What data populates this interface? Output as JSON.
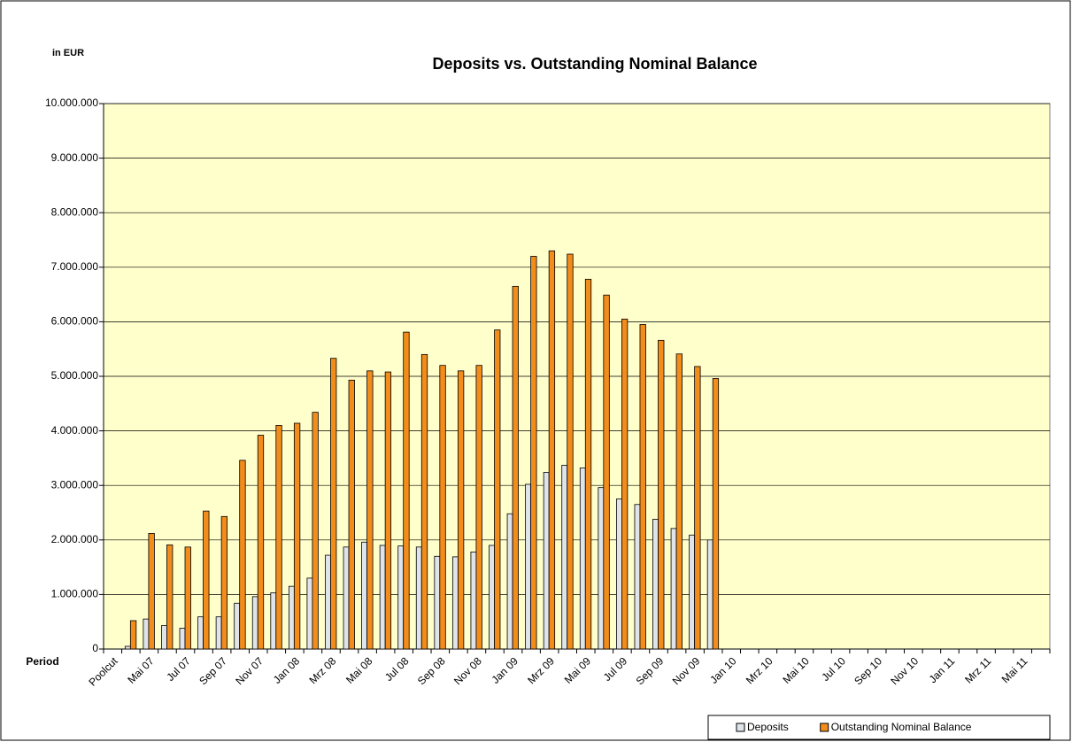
{
  "chart_data": {
    "type": "bar",
    "title": "Deposits vs. Outstanding Nominal Balance",
    "y_label": "in EUR",
    "x_label": "Period",
    "categories": [
      "Poolcut",
      null,
      "Mai 07",
      null,
      "Jul 07",
      null,
      "Sep 07",
      null,
      "Nov 07",
      null,
      "Jan 08",
      null,
      "Mrz 08",
      null,
      "Mai 08",
      null,
      "Jul 08",
      null,
      "Sep 08",
      null,
      "Nov 08",
      null,
      "Jan 09",
      null,
      "Mrz 09",
      null,
      "Mai 09",
      null,
      "Jul 09",
      null,
      "Sep 09",
      null,
      "Nov 09",
      null,
      "Jan 10",
      null,
      "Mrz 10",
      null,
      "Mai 10",
      null,
      "Jul 10",
      null,
      "Sep 10",
      null,
      "Nov 10",
      null,
      "Jan 11",
      null,
      "Mrz 11",
      null,
      "Mai 11",
      null
    ],
    "series": [
      {
        "name": "Deposits",
        "color": "#dfe3ea",
        "values": [
          null,
          50000,
          550000,
          430000,
          380000,
          590000,
          590000,
          840000,
          960000,
          1030000,
          1150000,
          1300000,
          1720000,
          1870000,
          1960000,
          1900000,
          1890000,
          1870000,
          1700000,
          1690000,
          1780000,
          1900000,
          2480000,
          3020000,
          3240000,
          3370000,
          3320000,
          2960000,
          2750000,
          2650000,
          2380000,
          2210000,
          2090000,
          2000000,
          null,
          null,
          null,
          null,
          null,
          null,
          null,
          null,
          null,
          null,
          null,
          null,
          null,
          null,
          null,
          null,
          null,
          null
        ]
      },
      {
        "name": "Outstanding Nominal Balance",
        "color": "#f28c1a",
        "values": [
          null,
          520000,
          2120000,
          1910000,
          1870000,
          2530000,
          2430000,
          3460000,
          3920000,
          4100000,
          4140000,
          4340000,
          5330000,
          4930000,
          5100000,
          5080000,
          5810000,
          5400000,
          5200000,
          5100000,
          5200000,
          5850000,
          6650000,
          7200000,
          7300000,
          7240000,
          6780000,
          6490000,
          6050000,
          5950000,
          5660000,
          5410000,
          5180000,
          4960000,
          null,
          null,
          null,
          null,
          null,
          null,
          null,
          null,
          null,
          null,
          null,
          null,
          null,
          null,
          null,
          null,
          null,
          null
        ]
      }
    ],
    "ylim": [
      0,
      10000000
    ],
    "yticks": [
      0,
      {
        "value": 1000000,
        "label": "1.000.000"
      },
      {
        "value": 2000000,
        "label": "2.000.000"
      },
      {
        "value": 3000000,
        "label": "3.000.000"
      },
      {
        "value": 4000000,
        "label": "4.000.000"
      },
      {
        "value": 5000000,
        "label": "5.000.000"
      },
      {
        "value": 6000000,
        "label": "6.000.000"
      },
      {
        "value": 7000000,
        "label": "7.000.000"
      },
      {
        "value": 8000000,
        "label": "8.000.000"
      },
      {
        "value": 9000000,
        "label": "9.000.000"
      },
      {
        "value": 10000000,
        "label": "10.000.000"
      }
    ],
    "grid": true,
    "plot_background": "#ffffcc",
    "legend": "bottom-right"
  }
}
